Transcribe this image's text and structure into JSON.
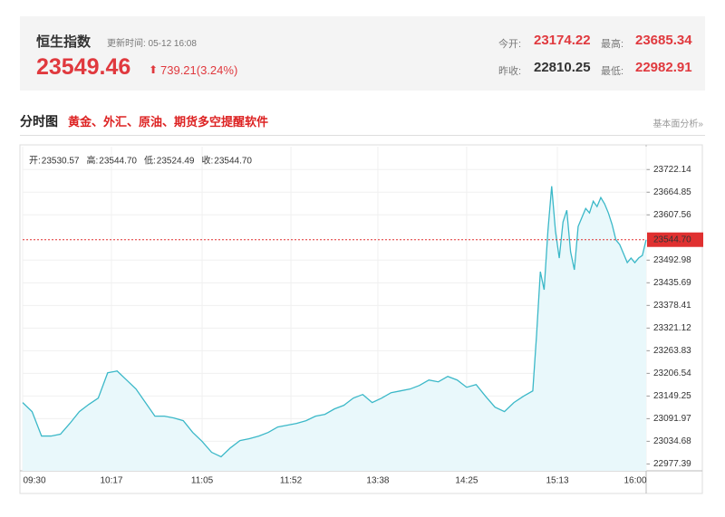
{
  "header": {
    "title": "恒生指数",
    "updated": "更新时间: 05-12 16:08",
    "price": "23549.46",
    "change": "739.21(3.24%)",
    "stats": [
      {
        "label": "今开:",
        "value": "23174.22"
      },
      {
        "label": "最高:",
        "value": "23685.34"
      },
      {
        "label": "昨收:",
        "value": "22810.25"
      },
      {
        "label": "最低:",
        "value": "22982.91"
      }
    ]
  },
  "section": {
    "title": "分时图",
    "promo": "黄金、外汇、原油、期货多空提醒软件",
    "link": "基本面分析»"
  },
  "chart_data": {
    "type": "line",
    "color": "#3bb8c8",
    "fill_color": "#e9f8fb",
    "info": [
      {
        "label": "开:",
        "value": "23530.57"
      },
      {
        "label": "高:",
        "value": "23544.70"
      },
      {
        "label": "低:",
        "value": "23524.49"
      },
      {
        "label": "收:",
        "value": "23544.70"
      }
    ],
    "x": [
      0,
      5,
      10,
      15,
      20,
      25,
      30,
      35,
      40,
      45,
      50,
      55,
      60,
      65,
      70,
      75,
      80,
      85,
      90,
      95,
      100,
      105,
      110,
      115,
      120,
      125,
      130,
      135,
      140,
      145,
      150,
      155,
      160,
      165,
      170,
      175,
      180,
      185,
      190,
      195,
      200,
      205,
      210,
      215,
      220,
      225,
      230,
      235,
      240,
      245,
      250,
      255,
      260,
      265,
      270,
      272,
      274,
      276,
      278,
      280,
      282,
      284,
      286,
      288,
      290,
      292,
      294,
      296,
      298,
      300,
      302,
      304,
      306,
      308,
      310,
      312,
      314,
      316,
      318,
      320,
      322,
      324,
      326,
      328,
      330
    ],
    "values": [
      23132.6,
      23109.7,
      23048.0,
      23048.0,
      23052.6,
      23080.0,
      23109.7,
      23128.0,
      23144.0,
      23208.0,
      23212.5,
      23189.7,
      23166.9,
      23132.6,
      23098.3,
      23098.3,
      23093.8,
      23086.9,
      23057.2,
      23034.3,
      23006.9,
      22995.5,
      23018.3,
      23036.6,
      23041.2,
      23048.0,
      23057.2,
      23070.9,
      23075.4,
      23080.0,
      23086.9,
      23098.3,
      23102.9,
      23116.6,
      23125.7,
      23144.0,
      23153.1,
      23132.6,
      23144.0,
      23157.7,
      23162.3,
      23166.9,
      23176.0,
      23189.7,
      23185.1,
      23198.8,
      23189.7,
      23171.4,
      23178.3,
      23148.6,
      23121.1,
      23109.7,
      23132.6,
      23148.6,
      23162.3,
      23303.9,
      23463.9,
      23418.2,
      23566.7,
      23680.0,
      23566.7,
      23498.2,
      23589.6,
      23619.3,
      23514.2,
      23468.5,
      23578.1,
      23601.0,
      23623.8,
      23612.4,
      23642.1,
      23628.4,
      23651.3,
      23635.3,
      23612.4,
      23582.7,
      23543.9,
      23532.4,
      23509.6,
      23486.7,
      23498.2,
      23486.7,
      23498.2,
      23505.0,
      23544.7
    ],
    "xlim": [
      0,
      330
    ],
    "ylim": [
      22960,
      23780
    ],
    "xticks": [
      {
        "value": 0,
        "label": "09:30"
      },
      {
        "value": 47,
        "label": "10:17"
      },
      {
        "value": 95,
        "label": "11:05"
      },
      {
        "value": 142,
        "label": "11:52"
      },
      {
        "value": 188,
        "label": "13:38"
      },
      {
        "value": 235,
        "label": "14:25"
      },
      {
        "value": 283,
        "label": "15:13"
      },
      {
        "value": 330,
        "label": "16:00"
      }
    ],
    "yticks": [
      23722.14,
      23664.85,
      23607.56,
      23492.98,
      23435.69,
      23378.41,
      23321.12,
      23263.83,
      23206.54,
      23149.25,
      23091.97,
      23034.68,
      22977.39
    ],
    "grid": true,
    "marker_line": {
      "value": 23544.7,
      "label": "23544.70",
      "color": "#e03030"
    }
  }
}
